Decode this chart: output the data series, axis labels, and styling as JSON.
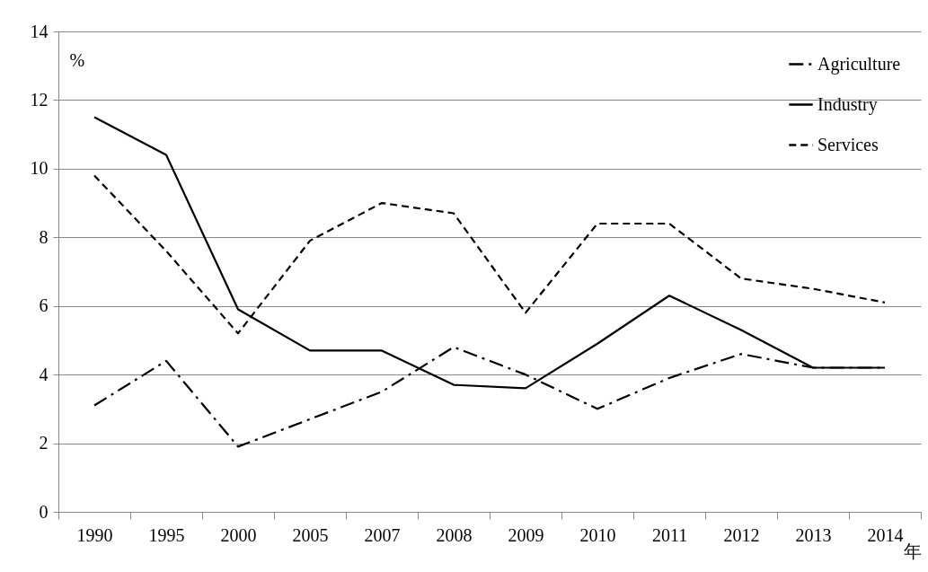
{
  "chart_data": {
    "type": "line",
    "ylabel": "%",
    "xlabel": "年",
    "categories": [
      "1990",
      "1995",
      "2000",
      "2005",
      "2007",
      "2008",
      "2009",
      "2010",
      "2011",
      "2012",
      "2013",
      "2014"
    ],
    "series": [
      {
        "name": "Agriculture",
        "color": "#000000",
        "line_style": "dashdot",
        "values": [
          3.1,
          4.4,
          1.9,
          2.7,
          3.5,
          4.8,
          4.0,
          3.0,
          3.9,
          4.6,
          4.2,
          4.2
        ]
      },
      {
        "name": "Industry",
        "color": "#000000",
        "line_style": "solid",
        "values": [
          11.5,
          10.4,
          5.9,
          4.7,
          4.7,
          3.7,
          3.6,
          4.9,
          6.3,
          5.3,
          4.2,
          4.2
        ]
      },
      {
        "name": "Services",
        "color": "#000000",
        "line_style": "dashed",
        "values": [
          9.8,
          7.6,
          5.2,
          7.9,
          9.0,
          8.7,
          5.8,
          8.4,
          8.4,
          6.8,
          6.5,
          6.1
        ]
      }
    ],
    "ylim": [
      0,
      14
    ],
    "yticks": [
      0,
      2,
      4,
      6,
      8,
      10,
      12,
      14
    ],
    "grid": "y",
    "legend": "top right",
    "marker": "none"
  }
}
